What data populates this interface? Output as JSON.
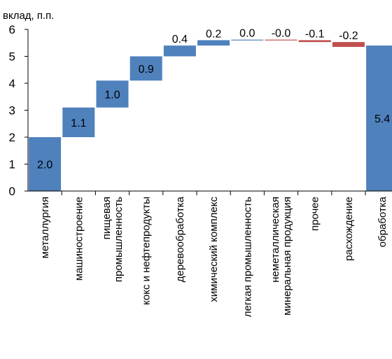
{
  "chart_data": {
    "type": "bar",
    "subtype": "waterfall",
    "title": "",
    "ylabel": "вклад, п.п.",
    "xlabel": "",
    "ylim": [
      0,
      6
    ],
    "yticks": [
      "0",
      "1",
      "2",
      "3",
      "4",
      "5",
      "6"
    ],
    "grid": false,
    "legend": "none",
    "colors": {
      "increase": "#4f81bd",
      "decrease": "#c0504d",
      "total": "#4f81bd"
    },
    "categories": [
      {
        "label": [
          "металлургия"
        ],
        "value": 2.0,
        "value_label": "2.0",
        "kind": "increase"
      },
      {
        "label": [
          "машиностроение"
        ],
        "value": 1.1,
        "value_label": "1.1",
        "kind": "increase"
      },
      {
        "label": [
          "пищевая",
          "промышленность"
        ],
        "value": 1.0,
        "value_label": "1.0",
        "kind": "increase"
      },
      {
        "label": [
          "кокс и нефтепродукты"
        ],
        "value": 0.9,
        "value_label": "0.9",
        "kind": "increase"
      },
      {
        "label": [
          "деревообработка"
        ],
        "value": 0.4,
        "value_label": "0.4",
        "kind": "increase"
      },
      {
        "label": [
          "химический комплекс"
        ],
        "value": 0.2,
        "value_label": "0.2",
        "kind": "increase"
      },
      {
        "label": [
          "легкая промышленность"
        ],
        "value": 0.02,
        "value_label": "0.0",
        "kind": "increase"
      },
      {
        "label": [
          "неметаллическая",
          "минеральная продукция"
        ],
        "value": -0.02,
        "value_label": "-0.0",
        "kind": "decrease"
      },
      {
        "label": [
          "прочее"
        ],
        "value": -0.07,
        "value_label": "-0.1",
        "kind": "decrease"
      },
      {
        "label": [
          "расхождение"
        ],
        "value": -0.18,
        "value_label": "-0.2",
        "kind": "decrease"
      },
      {
        "label": [
          "обработка"
        ],
        "value": 5.4,
        "value_label": "5.4",
        "kind": "total"
      }
    ]
  }
}
